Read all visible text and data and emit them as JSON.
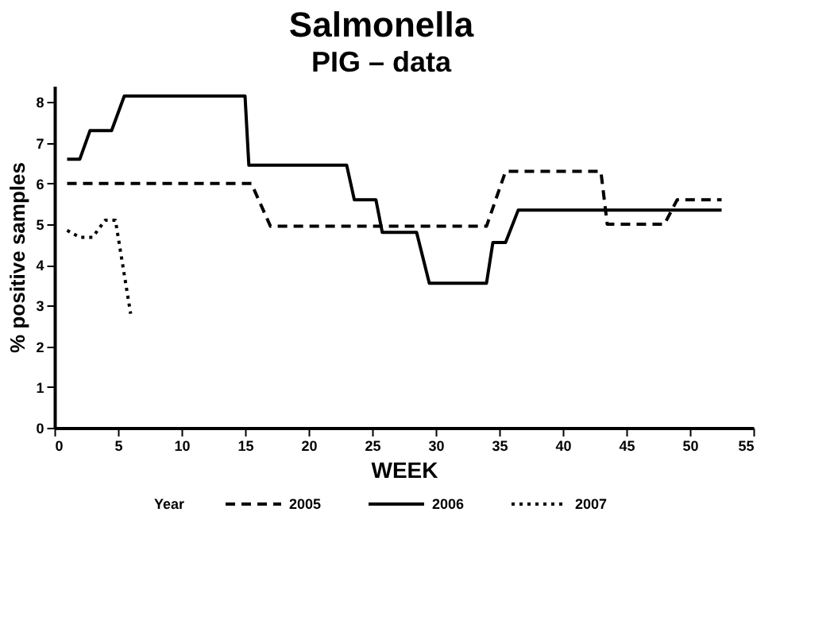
{
  "chart_data": {
    "type": "line",
    "title": "Salmonella",
    "subtitle": "PIG – data",
    "xlabel": "WEEK",
    "ylabel": "% positive samples",
    "legend_title": "Year",
    "xlim": [
      0,
      55
    ],
    "xticks": [
      0,
      5,
      10,
      15,
      20,
      25,
      30,
      35,
      40,
      45,
      50,
      55
    ],
    "ylim": [
      0,
      8.4
    ],
    "yticks": [
      0,
      1,
      2,
      3,
      4,
      5,
      6,
      7,
      8
    ],
    "grid": false,
    "legend": "bottom",
    "marker": "none",
    "series": [
      {
        "name": "2005",
        "color": "#000000",
        "line_style": "dashed",
        "x": [
          1,
          15.5,
          17,
          34,
          35.5,
          43,
          43.5,
          48,
          49,
          52.5
        ],
        "values": [
          6.0,
          6.0,
          4.95,
          4.95,
          6.3,
          6.3,
          5.0,
          5.0,
          5.6,
          5.6
        ]
      },
      {
        "name": "2006",
        "color": "#000000",
        "line_style": "solid",
        "x": [
          1,
          2,
          2.8,
          4.5,
          5.5,
          15,
          15.3,
          23,
          23.6,
          25.3,
          25.8,
          28.5,
          29.5,
          34,
          34.5,
          35.5,
          36.5,
          52.5
        ],
        "values": [
          6.6,
          6.6,
          7.3,
          7.3,
          8.15,
          8.15,
          6.45,
          6.45,
          5.6,
          5.6,
          4.8,
          4.8,
          3.55,
          3.55,
          4.55,
          4.55,
          5.35,
          5.35
        ]
      },
      {
        "name": "2007",
        "color": "#000000",
        "line_style": "dotted",
        "x": [
          1,
          2,
          3,
          4,
          4.8,
          6
        ],
        "values": [
          4.85,
          4.68,
          4.68,
          5.1,
          5.1,
          2.8
        ]
      }
    ]
  }
}
